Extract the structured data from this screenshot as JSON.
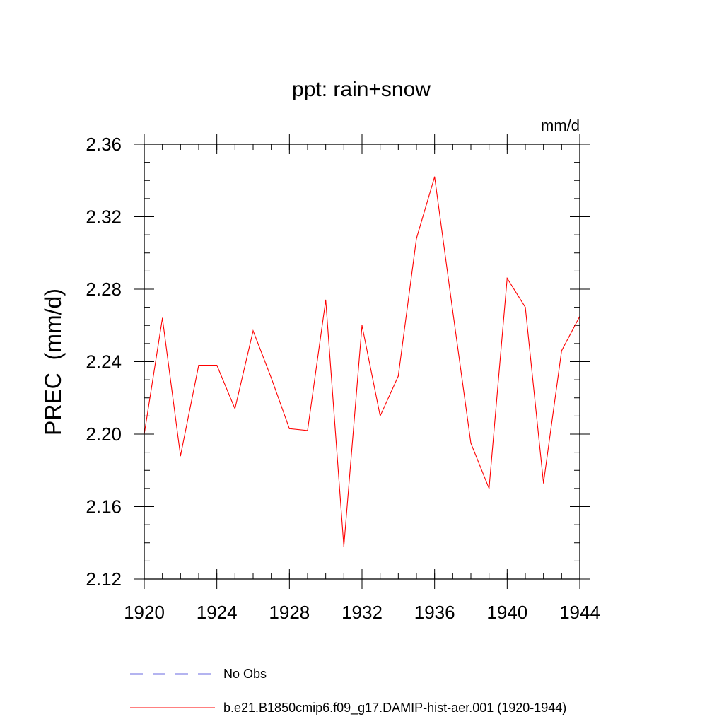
{
  "chart_data": {
    "type": "line",
    "title": "ppt: rain+snow",
    "units_label": "mm/d",
    "ylabel": "PREC  (mm/d)",
    "xlabel": "",
    "xlim": [
      1920,
      1944
    ],
    "ylim": [
      2.12,
      2.36
    ],
    "x_ticks": [
      1920,
      1924,
      1928,
      1932,
      1936,
      1940,
      1944
    ],
    "x_tick_labels": [
      "1920",
      "1924",
      "1928",
      "1932",
      "1936",
      "1940",
      "1944"
    ],
    "x_minor_step": 1,
    "y_ticks": [
      2.12,
      2.16,
      2.2,
      2.24,
      2.28,
      2.32,
      2.36
    ],
    "y_tick_labels": [
      "2.12",
      "2.16",
      "2.20",
      "2.24",
      "2.28",
      "2.32",
      "2.36"
    ],
    "y_minor_step": 0.01,
    "grid": false,
    "legend_position": "bottom",
    "legend": [
      {
        "label": "No Obs",
        "style": "dashed",
        "color": "#6a6ae0"
      },
      {
        "label": "b.e21.B1850cmip6.f09_g17.DAMIP-hist-aer.001 (1920-1944)",
        "style": "solid",
        "color": "#ff0000"
      }
    ],
    "series": [
      {
        "name": "b.e21.B1850cmip6.f09_g17.DAMIP-hist-aer.001 (1920-1944)",
        "color": "#ff0000",
        "x": [
          1920,
          1921,
          1922,
          1923,
          1924,
          1925,
          1926,
          1927,
          1928,
          1929,
          1930,
          1931,
          1932,
          1933,
          1934,
          1935,
          1936,
          1937,
          1938,
          1939,
          1940,
          1941,
          1942,
          1943,
          1944
        ],
        "values": [
          2.2,
          2.264,
          2.188,
          2.238,
          2.238,
          2.214,
          2.257,
          2.231,
          2.203,
          2.202,
          2.274,
          2.138,
          2.26,
          2.21,
          2.232,
          2.308,
          2.342,
          2.268,
          2.195,
          2.17,
          2.286,
          2.27,
          2.173,
          2.246,
          2.265
        ]
      }
    ]
  }
}
